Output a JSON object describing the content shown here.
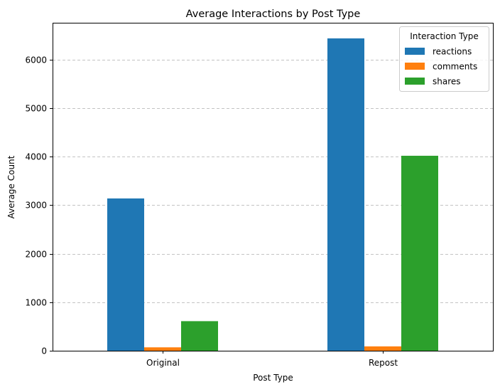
{
  "chart_data": {
    "type": "bar",
    "title": "Average Interactions by Post Type",
    "xlabel": "Post Type",
    "ylabel": "Average Count",
    "categories": [
      "Original",
      "Repost"
    ],
    "series": [
      {
        "name": "reactions",
        "values": [
          3140,
          6440
        ],
        "color": "#1f77b4"
      },
      {
        "name": "comments",
        "values": [
          70,
          90
        ],
        "color": "#ff7f0e"
      },
      {
        "name": "shares",
        "values": [
          610,
          4020
        ],
        "color": "#2ca02c"
      }
    ],
    "ylim": [
      0,
      6762
    ],
    "yticks": [
      0,
      1000,
      2000,
      3000,
      4000,
      5000,
      6000
    ],
    "grid": "y-dashed",
    "legend": {
      "title": "Interaction Type",
      "position": "top-right"
    }
  }
}
